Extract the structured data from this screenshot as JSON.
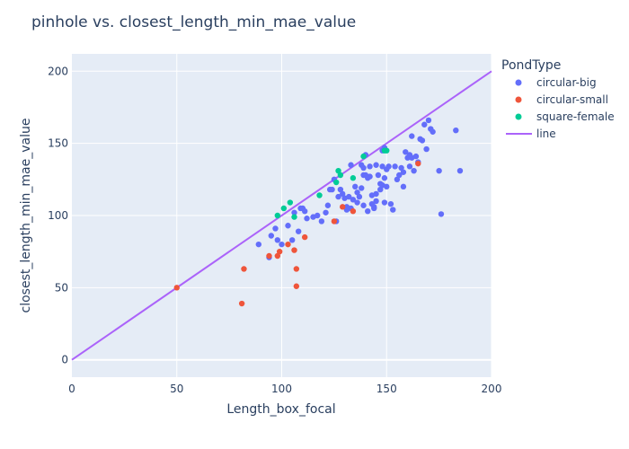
{
  "chart_data": {
    "type": "scatter",
    "title": "pinhole vs. closest_length_min_mae_value",
    "xlabel": "Length_box_focal",
    "ylabel": "closest_length_min_mae_value",
    "xlim": [
      0,
      200
    ],
    "ylim": [
      -12,
      212
    ],
    "xticks": [
      0,
      50,
      100,
      150,
      200
    ],
    "yticks": [
      0,
      50,
      100,
      150,
      200
    ],
    "grid": true,
    "legend": {
      "title": "PondType",
      "placement": "right"
    },
    "colors": {
      "plot_bg": "#E5ECF6",
      "grid": "#ffffff",
      "text": "#2a3f5f"
    },
    "series": [
      {
        "name": "circular-big",
        "marker": "circle",
        "color": "#636EFA",
        "points": [
          [
            89,
            80
          ],
          [
            94,
            71
          ],
          [
            95,
            86
          ],
          [
            97,
            91
          ],
          [
            98,
            83
          ],
          [
            100,
            80
          ],
          [
            103,
            93
          ],
          [
            105,
            83
          ],
          [
            106,
            102
          ],
          [
            108,
            89
          ],
          [
            109,
            105
          ],
          [
            110,
            105
          ],
          [
            111,
            103
          ],
          [
            112,
            98
          ],
          [
            115,
            99
          ],
          [
            117,
            100
          ],
          [
            119,
            96
          ],
          [
            121,
            102
          ],
          [
            122,
            107
          ],
          [
            123,
            118
          ],
          [
            124,
            118
          ],
          [
            125,
            125
          ],
          [
            127,
            113
          ],
          [
            128,
            118
          ],
          [
            129,
            115
          ],
          [
            130,
            112
          ],
          [
            131,
            106
          ],
          [
            132,
            113
          ],
          [
            133,
            105
          ],
          [
            134,
            111
          ],
          [
            135,
            120
          ],
          [
            136,
            116
          ],
          [
            137,
            113
          ],
          [
            138,
            119
          ],
          [
            139,
            133
          ],
          [
            139,
            128
          ],
          [
            140,
            142
          ],
          [
            140,
            128
          ],
          [
            141,
            126
          ],
          [
            141,
            103
          ],
          [
            142,
            134
          ],
          [
            142,
            127
          ],
          [
            143,
            114
          ],
          [
            143,
            108
          ],
          [
            144,
            106
          ],
          [
            145,
            135
          ],
          [
            145,
            115
          ],
          [
            145,
            110
          ],
          [
            146,
            128
          ],
          [
            147,
            118
          ],
          [
            147,
            122
          ],
          [
            148,
            121
          ],
          [
            148,
            145
          ],
          [
            149,
            147
          ],
          [
            149,
            126
          ],
          [
            149,
            109
          ],
          [
            150,
            132
          ],
          [
            150,
            120
          ],
          [
            151,
            134
          ],
          [
            152,
            108
          ],
          [
            153,
            104
          ],
          [
            154,
            134
          ],
          [
            155,
            125
          ],
          [
            156,
            128
          ],
          [
            157,
            133
          ],
          [
            158,
            120
          ],
          [
            158,
            130
          ],
          [
            159,
            144
          ],
          [
            160,
            140
          ],
          [
            161,
            142
          ],
          [
            161,
            134
          ],
          [
            162,
            140
          ],
          [
            162,
            155
          ],
          [
            163,
            131
          ],
          [
            164,
            141
          ],
          [
            165,
            137
          ],
          [
            166,
            153
          ],
          [
            167,
            152
          ],
          [
            168,
            163
          ],
          [
            169,
            146
          ],
          [
            170,
            166
          ],
          [
            171,
            160
          ],
          [
            172,
            158
          ],
          [
            175,
            131
          ],
          [
            176,
            101
          ],
          [
            183,
            159
          ],
          [
            185,
            131
          ],
          [
            139,
            107
          ],
          [
            136,
            109
          ],
          [
            131,
            104
          ],
          [
            126,
            96
          ],
          [
            133,
            135
          ],
          [
            138,
            135
          ],
          [
            144,
            105
          ],
          [
            148,
            134
          ]
        ]
      },
      {
        "name": "circular-small",
        "marker": "circle",
        "color": "#EF553B",
        "points": [
          [
            50,
            50
          ],
          [
            81,
            39
          ],
          [
            82,
            63
          ],
          [
            94,
            72
          ],
          [
            98,
            72
          ],
          [
            99,
            75
          ],
          [
            103,
            80
          ],
          [
            106,
            76
          ],
          [
            107,
            63
          ],
          [
            107,
            51
          ],
          [
            111,
            85
          ],
          [
            125,
            96
          ],
          [
            129,
            106
          ],
          [
            134,
            103
          ],
          [
            165,
            136
          ]
        ]
      },
      {
        "name": "square-female",
        "marker": "circle",
        "color": "#00CC96",
        "points": [
          [
            98,
            100
          ],
          [
            101,
            105
          ],
          [
            104,
            109
          ],
          [
            106,
            99
          ],
          [
            118,
            114
          ],
          [
            126,
            123
          ],
          [
            127,
            131
          ],
          [
            128,
            128
          ],
          [
            134,
            126
          ],
          [
            139,
            141
          ],
          [
            149,
            145
          ],
          [
            150,
            145
          ]
        ]
      },
      {
        "name": "line",
        "marker": "line",
        "color": "#AB63FA",
        "points": [
          [
            0,
            0
          ],
          [
            200,
            200
          ]
        ]
      }
    ]
  }
}
